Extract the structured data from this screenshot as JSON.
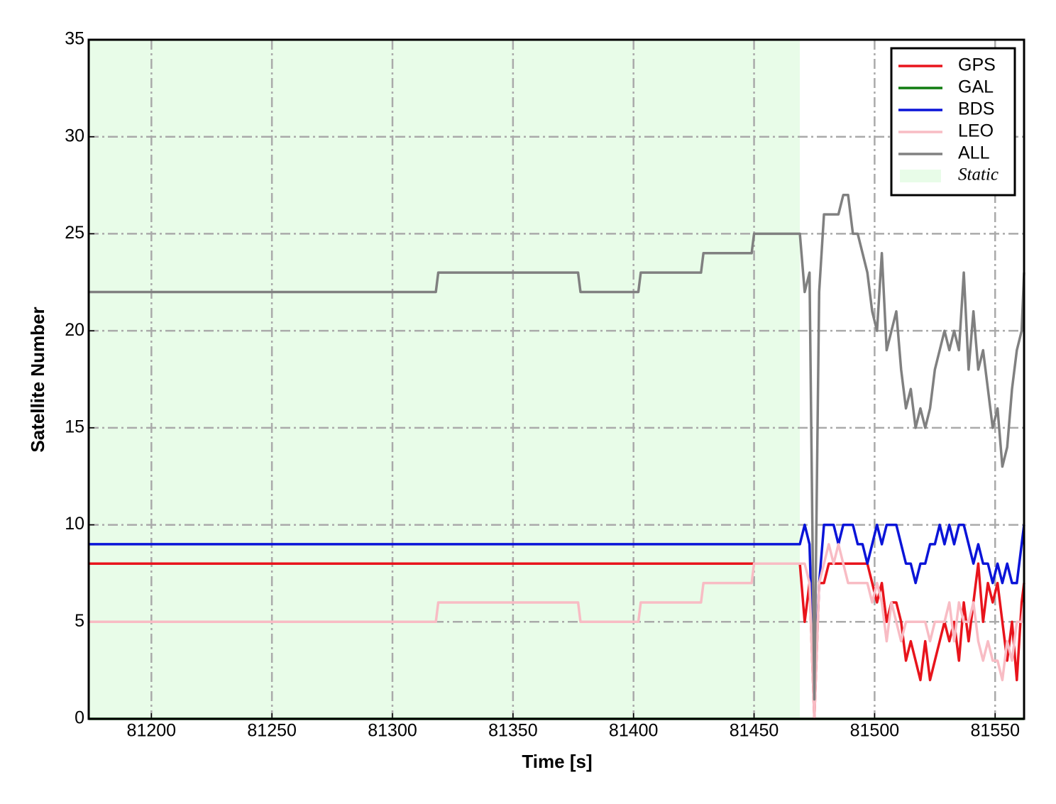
{
  "chart_data": {
    "type": "line",
    "xlabel": "Time [s]",
    "ylabel": "Satellite Number",
    "xlim": [
      81174,
      81562
    ],
    "ylim": [
      0,
      35
    ],
    "xticks": [
      81200,
      81250,
      81300,
      81350,
      81400,
      81450,
      81500,
      81550
    ],
    "yticks": [
      0,
      5,
      10,
      15,
      20,
      25,
      30,
      35
    ],
    "grid": true,
    "legend": "upper right",
    "shaded": {
      "label": "Static",
      "range": [
        81174,
        81469
      ],
      "color": "#e8fce8"
    },
    "x": [
      81174,
      81318,
      81319,
      81377,
      81378,
      81402,
      81403,
      81428,
      81429,
      81449,
      81450,
      81469,
      81471,
      81473,
      81475,
      81477,
      81479,
      81481,
      81483,
      81485,
      81487,
      81489,
      81491,
      81493,
      81495,
      81497,
      81499,
      81501,
      81503,
      81505,
      81507,
      81509,
      81511,
      81513,
      81515,
      81517,
      81519,
      81521,
      81523,
      81525,
      81527,
      81529,
      81531,
      81533,
      81535,
      81537,
      81539,
      81541,
      81543,
      81545,
      81547,
      81549,
      81551,
      81553,
      81555,
      81557,
      81559,
      81561,
      81562
    ],
    "series": [
      {
        "name": "GPS",
        "color": "#e8141c",
        "values": [
          8,
          8,
          8,
          8,
          8,
          8,
          8,
          8,
          8,
          8,
          8,
          8,
          5,
          7,
          0,
          7,
          7,
          8,
          8,
          8,
          8,
          8,
          8,
          8,
          8,
          8,
          7,
          6,
          7,
          5,
          6,
          6,
          5,
          3,
          4,
          3,
          2,
          4,
          2,
          3,
          4,
          5,
          4,
          5,
          3,
          6,
          4,
          6,
          8,
          5,
          7,
          6,
          7,
          5,
          3,
          5,
          2,
          6,
          7
        ]
      },
      {
        "name": "GAL",
        "color": "#107c10",
        "values": [
          0,
          0,
          0,
          0,
          0,
          0,
          0,
          0,
          0,
          0,
          0,
          0,
          0,
          0,
          0,
          0,
          0,
          0,
          0,
          0,
          0,
          0,
          0,
          0,
          0,
          0,
          0,
          0,
          0,
          0,
          0,
          0,
          0,
          0,
          0,
          0,
          0,
          0,
          0,
          0,
          0,
          0,
          0,
          0,
          0,
          0,
          0,
          0,
          0,
          0,
          0,
          0,
          0,
          0,
          0,
          0,
          0,
          0,
          0
        ]
      },
      {
        "name": "BDS",
        "color": "#0a14d8",
        "values": [
          9,
          9,
          9,
          9,
          9,
          9,
          9,
          9,
          9,
          9,
          9,
          9,
          10,
          9,
          1,
          7,
          10,
          10,
          10,
          9,
          10,
          10,
          10,
          9,
          9,
          8,
          9,
          10,
          9,
          10,
          10,
          10,
          9,
          8,
          8,
          7,
          8,
          8,
          9,
          9,
          10,
          9,
          10,
          9,
          10,
          10,
          9,
          8,
          9,
          8,
          8,
          7,
          8,
          7,
          8,
          7,
          7,
          9,
          10
        ]
      },
      {
        "name": "LEO",
        "color": "#f8bcc4",
        "values": [
          5,
          5,
          6,
          6,
          5,
          5,
          6,
          6,
          7,
          7,
          8,
          8,
          8,
          7,
          0,
          7,
          8,
          9,
          8,
          9,
          8,
          7,
          7,
          7,
          7,
          7,
          6,
          7,
          6,
          4,
          6,
          5,
          4,
          5,
          5,
          5,
          5,
          5,
          4,
          5,
          5,
          5,
          6,
          4,
          6,
          5,
          5,
          6,
          4,
          3,
          4,
          3,
          3,
          2,
          4,
          3,
          5,
          5,
          6
        ]
      },
      {
        "name": "ALL",
        "color": "#808080",
        "values": [
          22,
          22,
          23,
          23,
          22,
          22,
          23,
          23,
          24,
          24,
          25,
          25,
          22,
          23,
          1,
          22,
          26,
          26,
          26,
          26,
          27,
          27,
          25,
          25,
          24,
          23,
          21,
          20,
          24,
          19,
          20,
          21,
          18,
          16,
          17,
          15,
          16,
          15,
          16,
          18,
          19,
          20,
          19,
          20,
          19,
          23,
          18,
          21,
          18,
          19,
          17,
          15,
          16,
          13,
          14,
          17,
          19,
          20,
          23
        ]
      }
    ]
  }
}
